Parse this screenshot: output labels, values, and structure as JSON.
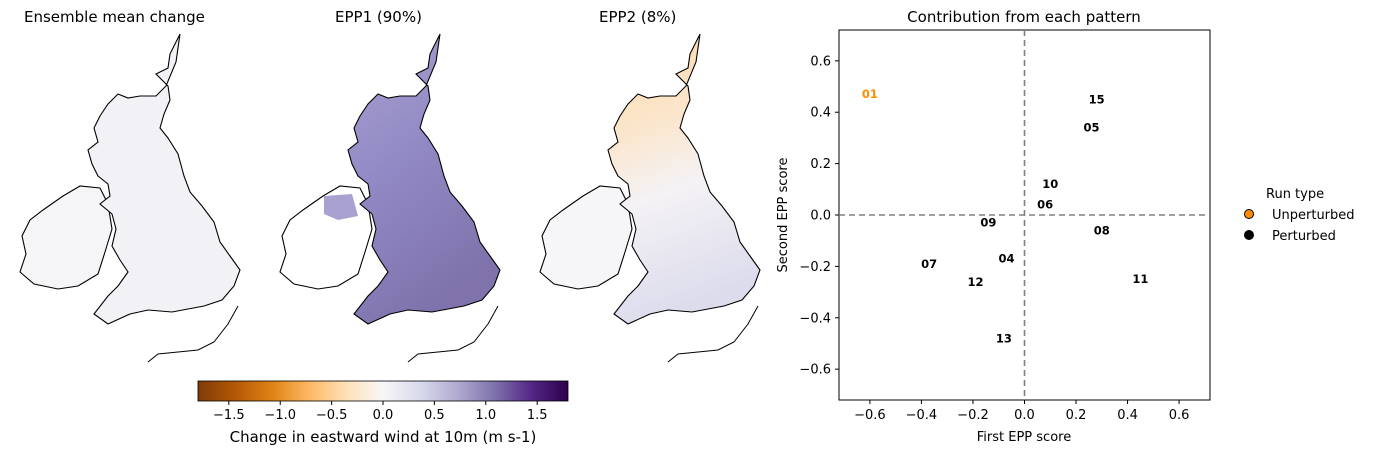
{
  "maps": [
    {
      "title": "Ensemble mean change"
    },
    {
      "title": "EPP1 (90%)"
    },
    {
      "title": "EPP2 (8%)"
    }
  ],
  "colorbar": {
    "label": "Change in eastward wind at 10m (m s-1)",
    "ticks": [
      "−1.5",
      "−1.0",
      "−0.5",
      "0.0",
      "0.5",
      "1.0",
      "1.5"
    ],
    "tick_values": [
      -1.5,
      -1.0,
      -0.5,
      0.0,
      0.5,
      1.0,
      1.5
    ],
    "range": [
      -1.8,
      1.8
    ],
    "colors": [
      "#7f3b08",
      "#b35806",
      "#e08214",
      "#fdb863",
      "#fee0b6",
      "#f7f7f7",
      "#d8daeb",
      "#b2abd2",
      "#8073ac",
      "#542788",
      "#2d004b"
    ]
  },
  "chart_data": {
    "type": "scatter",
    "title": "Contribution from each pattern",
    "xlabel": "First EPP score",
    "ylabel": "Second EPP score",
    "xlim": [
      -0.72,
      0.72
    ],
    "ylim": [
      -0.72,
      0.72
    ],
    "xticks": [
      -0.6,
      -0.4,
      -0.2,
      0.0,
      0.2,
      0.4,
      0.6
    ],
    "yticks": [
      -0.6,
      -0.4,
      -0.2,
      0.0,
      0.2,
      0.4,
      0.6
    ],
    "xtick_labels": [
      "−0.6",
      "−0.4",
      "−0.2",
      "0.0",
      "0.2",
      "0.4",
      "0.6"
    ],
    "ytick_labels": [
      "−0.6",
      "−0.4",
      "−0.2",
      "0.0",
      "0.2",
      "0.4",
      "0.6"
    ],
    "zero_lines": true,
    "points": [
      {
        "label": "01",
        "x": -0.6,
        "y": 0.47,
        "run_type": "Unperturbed"
      },
      {
        "label": "15",
        "x": 0.28,
        "y": 0.45,
        "run_type": "Perturbed"
      },
      {
        "label": "05",
        "x": 0.26,
        "y": 0.34,
        "run_type": "Perturbed"
      },
      {
        "label": "10",
        "x": 0.1,
        "y": 0.12,
        "run_type": "Perturbed"
      },
      {
        "label": "06",
        "x": 0.08,
        "y": 0.04,
        "run_type": "Perturbed"
      },
      {
        "label": "09",
        "x": -0.14,
        "y": -0.03,
        "run_type": "Perturbed"
      },
      {
        "label": "08",
        "x": 0.3,
        "y": -0.06,
        "run_type": "Perturbed"
      },
      {
        "label": "04",
        "x": -0.07,
        "y": -0.17,
        "run_type": "Perturbed"
      },
      {
        "label": "07",
        "x": -0.37,
        "y": -0.19,
        "run_type": "Perturbed"
      },
      {
        "label": "12",
        "x": -0.19,
        "y": -0.26,
        "run_type": "Perturbed"
      },
      {
        "label": "11",
        "x": 0.45,
        "y": -0.25,
        "run_type": "Perturbed"
      },
      {
        "label": "13",
        "x": -0.08,
        "y": -0.48,
        "run_type": "Perturbed"
      }
    ],
    "legend": {
      "title": "Run type",
      "placement": "outside-right",
      "items": [
        {
          "label": "Unperturbed",
          "color": "#ff8c00"
        },
        {
          "label": "Perturbed",
          "color": "#000000"
        }
      ]
    }
  }
}
